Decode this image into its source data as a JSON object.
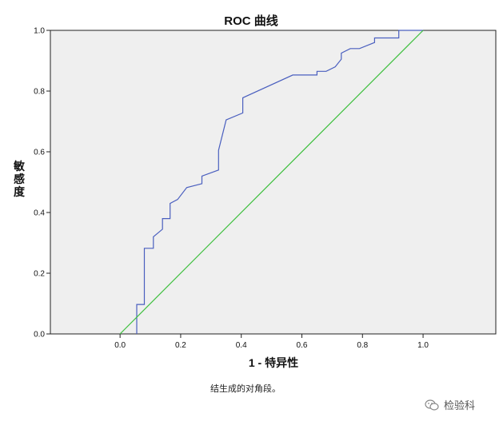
{
  "chart_data": {
    "type": "line",
    "title": "ROC 曲线",
    "xlabel": "1 - 特异性",
    "ylabel": "敏感度",
    "xlim": [
      -0.23,
      1.24
    ],
    "ylim": [
      0,
      1
    ],
    "xticks": [
      "0.0",
      "0.2",
      "0.4",
      "0.6",
      "0.8",
      "1.0"
    ],
    "yticks": [
      "0.0",
      "0.2",
      "0.4",
      "0.6",
      "0.8",
      "1.0"
    ],
    "grid": false,
    "background": "#efefef",
    "series": [
      {
        "color": "#4a5fbf",
        "points": [
          [
            0.055,
            0.0
          ],
          [
            0.055,
            0.097
          ],
          [
            0.08,
            0.097
          ],
          [
            0.08,
            0.282
          ],
          [
            0.11,
            0.282
          ],
          [
            0.11,
            0.32
          ],
          [
            0.14,
            0.345
          ],
          [
            0.14,
            0.38
          ],
          [
            0.165,
            0.38
          ],
          [
            0.165,
            0.43
          ],
          [
            0.19,
            0.443
          ],
          [
            0.22,
            0.482
          ],
          [
            0.27,
            0.495
          ],
          [
            0.27,
            0.52
          ],
          [
            0.325,
            0.54
          ],
          [
            0.325,
            0.605
          ],
          [
            0.35,
            0.705
          ],
          [
            0.405,
            0.728
          ],
          [
            0.405,
            0.778
          ],
          [
            0.57,
            0.853
          ],
          [
            0.65,
            0.853
          ],
          [
            0.65,
            0.865
          ],
          [
            0.68,
            0.865
          ],
          [
            0.71,
            0.88
          ],
          [
            0.73,
            0.905
          ],
          [
            0.73,
            0.925
          ],
          [
            0.76,
            0.94
          ],
          [
            0.79,
            0.94
          ],
          [
            0.84,
            0.96
          ],
          [
            0.84,
            0.975
          ],
          [
            0.92,
            0.975
          ],
          [
            0.92,
            1.0
          ],
          [
            1.0,
            1.0
          ]
        ]
      },
      {
        "color": "#3cbf3c",
        "points": [
          [
            0.0,
            0.0
          ],
          [
            1.0,
            1.0
          ]
        ]
      }
    ]
  },
  "footnote": "结生成的对角段。",
  "watermark": {
    "icon": "wechat-icon",
    "text": "检验科"
  }
}
